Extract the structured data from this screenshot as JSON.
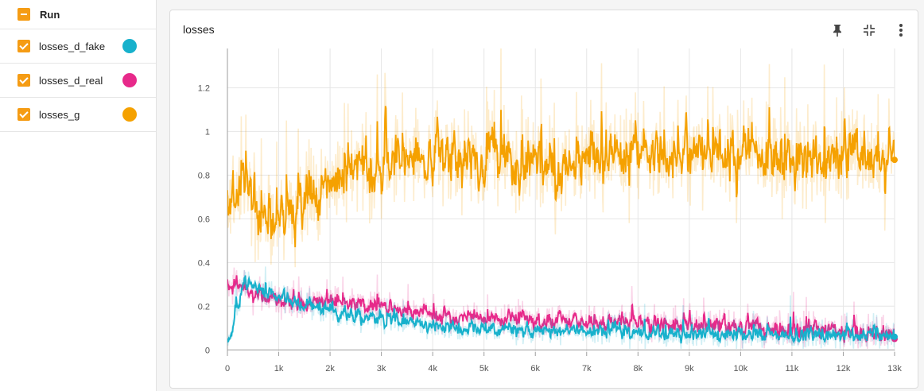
{
  "sidebar": {
    "run_label": "Run",
    "series": [
      {
        "label": "losses_d_fake",
        "color": "#17b1cc"
      },
      {
        "label": "losses_d_real",
        "color": "#e7298a"
      },
      {
        "label": "losses_g",
        "color": "#f5a100"
      }
    ]
  },
  "card": {
    "title": "losses",
    "icons": [
      "pin-icon",
      "fit-icon",
      "more-vert-icon"
    ]
  },
  "chart_data": {
    "type": "line",
    "title": "losses",
    "x_ticks": [
      "0",
      "1k",
      "2k",
      "3k",
      "4k",
      "5k",
      "6k",
      "7k",
      "8k",
      "9k",
      "10k",
      "11k",
      "12k",
      "13k"
    ],
    "y_ticks": [
      "0",
      "0.2",
      "0.4",
      "0.6",
      "0.8",
      "1",
      "1.2"
    ],
    "xlim": [
      0,
      13000
    ],
    "ylim": [
      -0.01,
      1.38
    ],
    "grid": true,
    "series": [
      {
        "name": "losses_g",
        "color": "#f5a100",
        "x_end": 13000,
        "y_end": 0.87,
        "trend": [
          [
            0,
            0.62
          ],
          [
            300,
            0.78
          ],
          [
            600,
            0.62
          ],
          [
            900,
            0.58
          ],
          [
            1200,
            0.66
          ],
          [
            1500,
            0.66
          ],
          [
            1800,
            0.7
          ],
          [
            2200,
            0.8
          ],
          [
            2600,
            0.82
          ],
          [
            3000,
            0.86
          ],
          [
            3500,
            0.88
          ],
          [
            4000,
            0.88
          ],
          [
            5000,
            0.88
          ],
          [
            6000,
            0.87
          ],
          [
            7000,
            0.87
          ],
          [
            8000,
            0.9
          ],
          [
            9000,
            0.87
          ],
          [
            10000,
            0.9
          ],
          [
            11000,
            0.88
          ],
          [
            12000,
            0.88
          ],
          [
            13000,
            0.87
          ]
        ],
        "noise": 0.16
      },
      {
        "name": "losses_d_real",
        "color": "#e7298a",
        "x_end": 13000,
        "y_end": 0.05,
        "trend": [
          [
            0,
            0.27
          ],
          [
            200,
            0.3
          ],
          [
            500,
            0.25
          ],
          [
            1000,
            0.22
          ],
          [
            1500,
            0.2
          ],
          [
            2000,
            0.22
          ],
          [
            2500,
            0.21
          ],
          [
            3000,
            0.19
          ],
          [
            4000,
            0.16
          ],
          [
            5000,
            0.14
          ],
          [
            6000,
            0.13
          ],
          [
            7000,
            0.13
          ],
          [
            8000,
            0.12
          ],
          [
            9000,
            0.11
          ],
          [
            10000,
            0.1
          ],
          [
            11000,
            0.09
          ],
          [
            12000,
            0.09
          ],
          [
            13000,
            0.06
          ]
        ],
        "noise": 0.05
      },
      {
        "name": "losses_d_fake",
        "color": "#17b1cc",
        "x_end": 13000,
        "y_end": 0.06,
        "trend": [
          [
            0,
            0.04
          ],
          [
            100,
            0.12
          ],
          [
            300,
            0.32
          ],
          [
            600,
            0.28
          ],
          [
            1000,
            0.24
          ],
          [
            1500,
            0.2
          ],
          [
            2000,
            0.18
          ],
          [
            2500,
            0.16
          ],
          [
            3000,
            0.14
          ],
          [
            3500,
            0.13
          ],
          [
            4000,
            0.11
          ],
          [
            5000,
            0.09
          ],
          [
            6000,
            0.09
          ],
          [
            7000,
            0.09
          ],
          [
            8000,
            0.08
          ],
          [
            9000,
            0.07
          ],
          [
            10000,
            0.07
          ],
          [
            11000,
            0.07
          ],
          [
            12000,
            0.07
          ],
          [
            13000,
            0.06
          ]
        ],
        "noise": 0.045
      }
    ]
  }
}
